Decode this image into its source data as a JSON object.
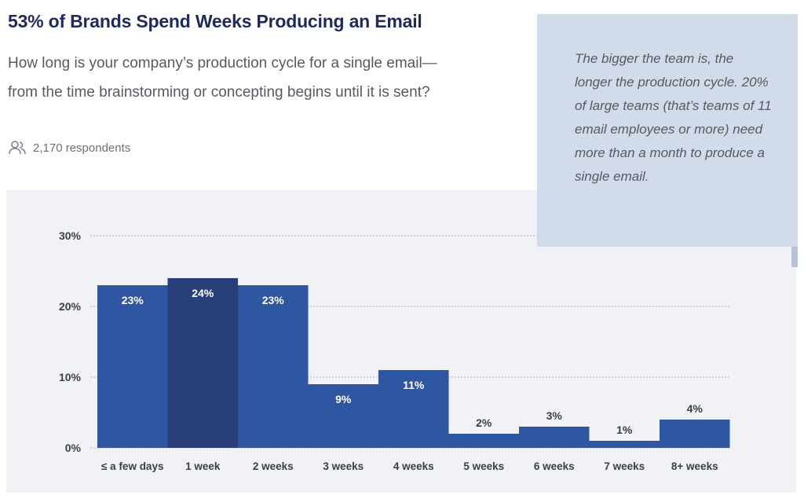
{
  "header": {
    "title": "53% of Brands Spend Weeks Producing an Email",
    "question": "How long is your company’s production cycle for a single email—from the time brainstorming or concepting begins until it is sent?",
    "respondents": "2,170 respondents",
    "respondents_icon": "users-icon"
  },
  "callout": {
    "text": "The bigger the team is, the longer the production cycle. 20% of large teams (that’s teams of 11 email employees or more) need more than a month to produce a single email."
  },
  "colors": {
    "bar": "#2f56a0",
    "bar_highlight": "#283f7a",
    "grid": "#a9adb4",
    "axis_text": "#3a3f47"
  },
  "chart_data": {
    "type": "bar",
    "categories": [
      "≤ a few days",
      "1 week",
      "2 weeks",
      "3 weeks",
      "4 weeks",
      "5 weeks",
      "6 weeks",
      "7 weeks",
      "8+ weeks"
    ],
    "values": [
      23,
      24,
      23,
      9,
      11,
      2,
      3,
      1,
      4
    ],
    "value_labels": [
      "23%",
      "24%",
      "23%",
      "9%",
      "11%",
      "2%",
      "3%",
      "1%",
      "4%"
    ],
    "highlight_index": 1,
    "yticks": [
      0,
      10,
      20,
      30
    ],
    "ytick_labels": [
      "0%",
      "10%",
      "20%",
      "30%"
    ],
    "ylim": [
      0,
      30
    ],
    "grid": true,
    "title": "",
    "xlabel": "",
    "ylabel": ""
  }
}
